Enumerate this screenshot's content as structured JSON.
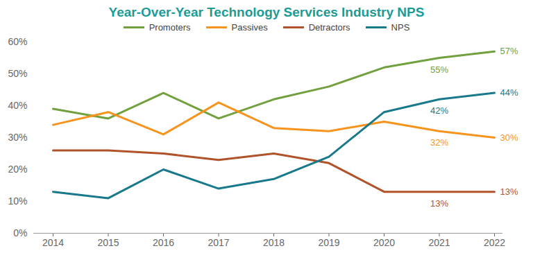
{
  "chart_data": {
    "type": "line",
    "title": "Year-Over-Year Technology Services Industry NPS",
    "x": [
      2014,
      2015,
      2016,
      2017,
      2018,
      2019,
      2020,
      2021,
      2022
    ],
    "xlim": [
      2014,
      2022
    ],
    "xticks": [
      2014,
      2015,
      2016,
      2017,
      2018,
      2019,
      2020,
      2021,
      2022
    ],
    "ylim": [
      0,
      60
    ],
    "yticks": [
      {
        "value": 0,
        "label": "0%"
      },
      {
        "value": 10,
        "label": "10%"
      },
      {
        "value": 20,
        "label": "20%"
      },
      {
        "value": 30,
        "label": "30%"
      },
      {
        "value": 40,
        "label": "40%"
      },
      {
        "value": 50,
        "label": "50%"
      },
      {
        "value": 60,
        "label": "60%"
      }
    ],
    "grid": false,
    "legend": "top",
    "data_labels": true,
    "series": [
      {
        "name": "Promoters",
        "color": "#72a03e",
        "values": [
          39,
          36,
          44,
          36,
          42,
          46,
          52,
          55,
          57
        ],
        "value_labels": [
          null,
          null,
          null,
          null,
          null,
          null,
          null,
          "55%",
          "57%"
        ]
      },
      {
        "name": "Passives",
        "color": "#f7941d",
        "values": [
          34,
          38,
          31,
          41,
          33,
          32,
          35,
          32,
          30
        ],
        "value_labels": [
          null,
          null,
          null,
          null,
          null,
          null,
          null,
          "32%",
          "30%"
        ]
      },
      {
        "name": "Detractors",
        "color": "#b0532a",
        "values": [
          26,
          26,
          25,
          23,
          25,
          22,
          13,
          13,
          13
        ],
        "value_labels": [
          null,
          null,
          null,
          null,
          null,
          null,
          null,
          "13%",
          "13%"
        ]
      },
      {
        "name": "NPS",
        "color": "#17798a",
        "values": [
          13,
          11,
          20,
          14,
          17,
          24,
          38,
          42,
          44
        ],
        "value_labels": [
          null,
          null,
          null,
          null,
          null,
          null,
          null,
          "42%",
          "44%"
        ]
      }
    ]
  }
}
